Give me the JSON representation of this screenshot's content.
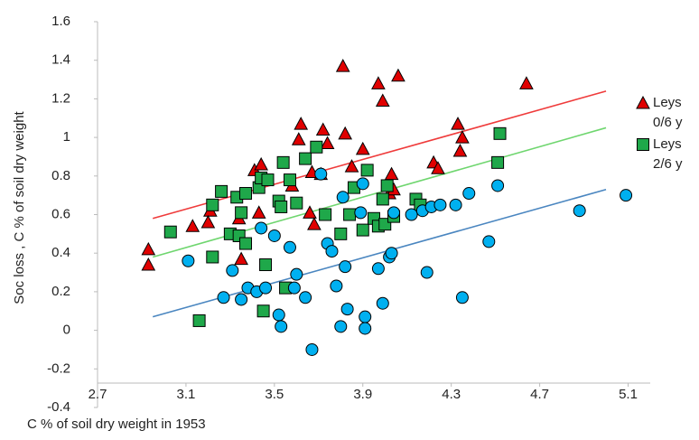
{
  "chart_data": {
    "type": "scatter",
    "xlabel": "C % of soil  dry weight in 1953",
    "ylabel": "Soc loss , C % of soil dry weight",
    "xlim": [
      2.7,
      5.2
    ],
    "ylim": [
      -0.4,
      1.6
    ],
    "xticks": [
      2.7,
      3.1,
      3.5,
      3.9,
      4.3,
      4.7,
      5.1
    ],
    "yticks": [
      -0.4,
      -0.2,
      0,
      0.2,
      0.4,
      0.6,
      0.8,
      1,
      1.2,
      1.4,
      1.6
    ],
    "grid": false,
    "legend": "right",
    "series": [
      {
        "name": "Leys 0/6 y",
        "marker": "triangle",
        "color": "#e00000",
        "line_color": "#ef3b3b",
        "x": [
          2.93,
          2.93,
          3.13,
          3.21,
          3.2,
          3.34,
          3.35,
          3.41,
          3.44,
          3.43,
          3.62,
          3.61,
          3.66,
          3.68,
          3.72,
          3.81,
          3.82,
          3.85,
          3.9,
          3.97,
          3.99,
          4.06,
          4.02,
          4.03,
          4.22,
          4.24,
          4.34,
          4.33,
          4.35,
          4.64,
          3.71,
          3.67,
          3.74,
          4.04,
          3.58
        ],
        "y": [
          0.42,
          0.34,
          0.54,
          0.62,
          0.56,
          0.58,
          0.37,
          0.83,
          0.86,
          0.61,
          1.07,
          0.99,
          0.61,
          0.55,
          1.04,
          1.37,
          1.02,
          0.85,
          0.94,
          1.28,
          1.19,
          1.32,
          0.71,
          0.81,
          0.87,
          0.84,
          0.93,
          1.07,
          1.0,
          1.28,
          0.81,
          0.82,
          0.97,
          0.73,
          0.75
        ],
        "trend_x": [
          2.95,
          5.0
        ],
        "trend_y": [
          0.58,
          1.24
        ]
      },
      {
        "name": "Leys 2/6 y",
        "marker": "square",
        "color": "#1fa84a",
        "line_color": "#6fd66f",
        "x": [
          3.03,
          3.16,
          3.22,
          3.22,
          3.26,
          3.3,
          3.33,
          3.34,
          3.35,
          3.37,
          3.37,
          3.43,
          3.44,
          3.45,
          3.46,
          3.47,
          3.52,
          3.53,
          3.54,
          3.55,
          3.57,
          3.6,
          3.64,
          3.69,
          3.73,
          3.8,
          3.84,
          3.86,
          3.9,
          3.92,
          3.95,
          3.97,
          3.99,
          4.0,
          4.01,
          4.04,
          4.14,
          4.16,
          4.51,
          4.52
        ],
        "y": [
          0.51,
          0.05,
          0.38,
          0.65,
          0.72,
          0.5,
          0.69,
          0.49,
          0.61,
          0.45,
          0.71,
          0.74,
          0.79,
          0.1,
          0.34,
          0.78,
          0.67,
          0.64,
          0.87,
          0.22,
          0.78,
          0.66,
          0.89,
          0.95,
          0.6,
          0.5,
          0.6,
          0.74,
          0.52,
          0.83,
          0.58,
          0.54,
          0.68,
          0.55,
          0.75,
          0.59,
          0.68,
          0.65,
          0.87,
          1.02
        ],
        "trend_x": [
          2.95,
          5.0
        ],
        "trend_y": [
          0.38,
          1.05
        ]
      },
      {
        "marker": "circle",
        "color": "#00b0f0",
        "line_color": "#4a86c0",
        "x": [
          3.11,
          3.27,
          3.31,
          3.35,
          3.38,
          3.42,
          3.44,
          3.46,
          3.5,
          3.52,
          3.53,
          3.57,
          3.59,
          3.6,
          3.64,
          3.67,
          3.71,
          3.74,
          3.76,
          3.78,
          3.8,
          3.81,
          3.82,
          3.83,
          3.89,
          3.9,
          3.91,
          3.91,
          3.97,
          3.99,
          4.02,
          4.03,
          4.04,
          4.12,
          4.17,
          4.19,
          4.21,
          4.25,
          4.32,
          4.35,
          4.38,
          4.47,
          4.51,
          4.88,
          5.09
        ],
        "y": [
          0.36,
          0.17,
          0.31,
          0.16,
          0.22,
          0.2,
          0.53,
          0.22,
          0.49,
          0.08,
          0.02,
          0.43,
          0.22,
          0.29,
          0.17,
          -0.1,
          0.81,
          0.45,
          0.41,
          0.23,
          0.02,
          0.69,
          0.33,
          0.11,
          0.61,
          0.76,
          0.07,
          0.01,
          0.32,
          0.14,
          0.38,
          0.4,
          0.61,
          0.6,
          0.62,
          0.3,
          0.64,
          0.65,
          0.65,
          0.17,
          0.71,
          0.46,
          0.75,
          0.62,
          0.7
        ],
        "trend_x": [
          2.95,
          5.0
        ],
        "trend_y": [
          0.07,
          0.73
        ]
      }
    ]
  }
}
